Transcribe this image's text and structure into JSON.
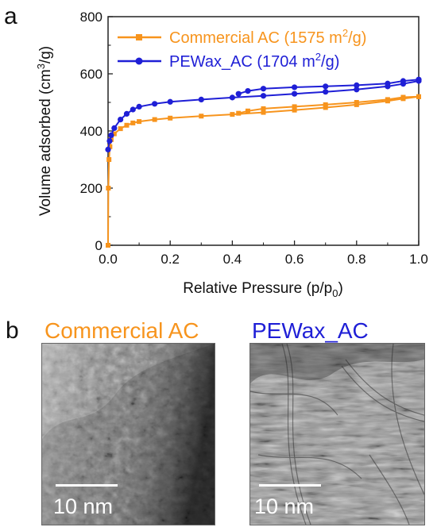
{
  "panel_a": {
    "letter": "a",
    "chart_data": {
      "type": "line",
      "xlabel": "Relative Pressure (p/p",
      "xlabel_sub": "0",
      "ylabel": "Volume adsorbed (cm",
      "ylabel_sup": "3",
      "ylabel_tail": "/g)",
      "xlim": [
        0.0,
        1.0
      ],
      "ylim": [
        0,
        800
      ],
      "x_ticks": [
        "0.0",
        "0.2",
        "0.4",
        "0.6",
        "0.8",
        "1.0"
      ],
      "y_ticks": [
        "0",
        "200",
        "400",
        "600",
        "800"
      ],
      "grid": false,
      "legend_position": "top-left",
      "series": [
        {
          "name": "Commercial AC (1575 m",
          "name_sup": "2",
          "name_tail": "/g)",
          "color": "#f7941d",
          "marker": "square",
          "adsorption": [
            [
              0.0,
              0
            ],
            [
              0.001,
              200
            ],
            [
              0.003,
              300
            ],
            [
              0.006,
              345
            ],
            [
              0.01,
              370
            ],
            [
              0.02,
              390
            ],
            [
              0.04,
              408
            ],
            [
              0.06,
              420
            ],
            [
              0.08,
              428
            ],
            [
              0.1,
              433
            ],
            [
              0.15,
              440
            ],
            [
              0.2,
              445
            ],
            [
              0.3,
              452
            ],
            [
              0.4,
              458
            ],
            [
              0.5,
              465
            ],
            [
              0.6,
              473
            ],
            [
              0.7,
              482
            ],
            [
              0.8,
              492
            ],
            [
              0.9,
              505
            ],
            [
              0.95,
              513
            ],
            [
              1.0,
              520
            ]
          ],
          "desorption": [
            [
              1.0,
              520
            ],
            [
              0.95,
              518
            ],
            [
              0.9,
              510
            ],
            [
              0.8,
              500
            ],
            [
              0.7,
              492
            ],
            [
              0.6,
              485
            ],
            [
              0.5,
              478
            ],
            [
              0.45,
              470
            ],
            [
              0.42,
              462
            ]
          ]
        },
        {
          "name": "PEWax_AC (1704 m",
          "name_sup": "2",
          "name_tail": "/g)",
          "color": "#1f1fd6",
          "marker": "circle",
          "adsorption": [
            [
              0.0,
              335
            ],
            [
              0.005,
              365
            ],
            [
              0.01,
              385
            ],
            [
              0.02,
              410
            ],
            [
              0.04,
              440
            ],
            [
              0.06,
              460
            ],
            [
              0.08,
              475
            ],
            [
              0.1,
              485
            ],
            [
              0.15,
              495
            ],
            [
              0.2,
              502
            ],
            [
              0.3,
              510
            ],
            [
              0.4,
              517
            ],
            [
              0.5,
              523
            ],
            [
              0.6,
              530
            ],
            [
              0.7,
              537
            ],
            [
              0.8,
              545
            ],
            [
              0.9,
              556
            ],
            [
              0.95,
              565
            ],
            [
              1.0,
              575
            ]
          ],
          "desorption": [
            [
              1.0,
              580
            ],
            [
              0.95,
              575
            ],
            [
              0.9,
              566
            ],
            [
              0.8,
              560
            ],
            [
              0.7,
              556
            ],
            [
              0.6,
              553
            ],
            [
              0.5,
              548
            ],
            [
              0.45,
              540
            ],
            [
              0.42,
              530
            ]
          ]
        }
      ]
    }
  },
  "panel_b": {
    "letter": "b",
    "images": [
      {
        "title": "Commercial AC",
        "title_color": "#f7941d",
        "scale_label": "10 nm",
        "texture": "dense-amorphous-carbon"
      },
      {
        "title": "PEWax_AC",
        "title_color": "#1f1fd6",
        "scale_label": "10 nm",
        "texture": "graphitic-layered-carbon"
      }
    ]
  }
}
